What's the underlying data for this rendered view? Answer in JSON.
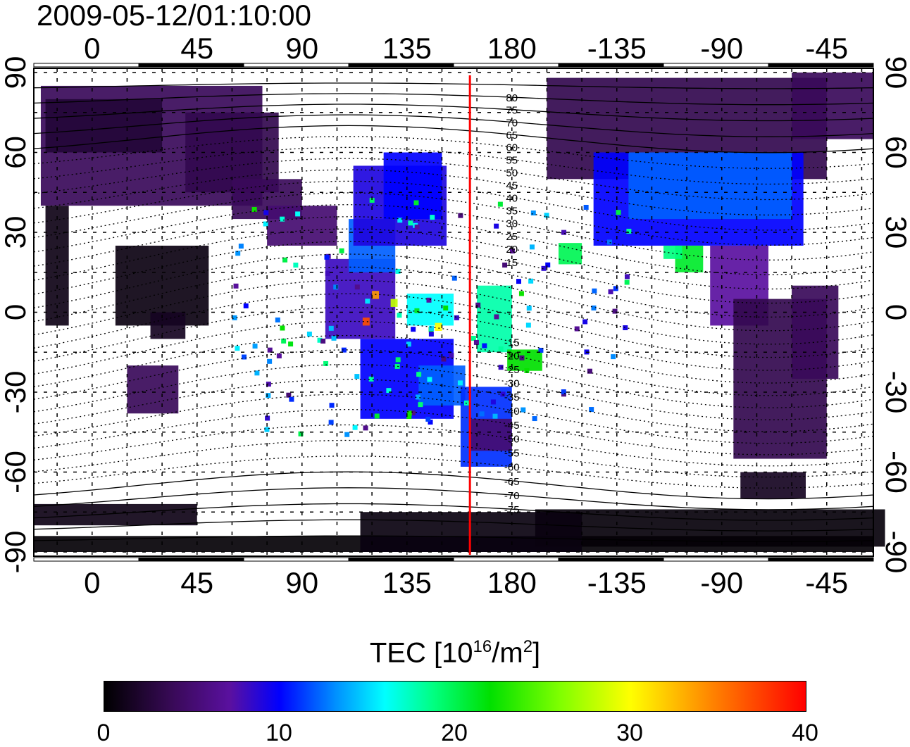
{
  "title": "2009-05-12/01:10:00",
  "axes": {
    "lon_ticks": [
      "0",
      "45",
      "90",
      "135",
      "180",
      "-135",
      "-90",
      "-45"
    ],
    "lon_tick_values": [
      0,
      45,
      90,
      135,
      180,
      225,
      270,
      315
    ],
    "lat_ticks": [
      "90",
      "60",
      "30",
      "0",
      "-30",
      "-60",
      "-90"
    ],
    "lat_tick_values": [
      90,
      60,
      30,
      0,
      -30,
      -60,
      -90
    ],
    "lon_range": [
      -25,
      335
    ],
    "lat_range": [
      -90,
      90
    ]
  },
  "marker_line": {
    "lon": 162,
    "color": "#ff0000"
  },
  "mlat_labels": [
    "80",
    "75",
    "70",
    "65",
    "60",
    "55",
    "50",
    "45",
    "40",
    "35",
    "30",
    "25",
    "20",
    "15",
    "-15",
    "-20",
    "-25",
    "-30",
    "-35",
    "-40",
    "-45",
    "-50",
    "-55",
    "-60",
    "-65",
    "-70",
    "-75"
  ],
  "mlat_values": [
    80,
    75,
    70,
    65,
    60,
    55,
    50,
    45,
    40,
    35,
    30,
    25,
    20,
    15,
    -15,
    -20,
    -25,
    -30,
    -35,
    -40,
    -45,
    -50,
    -55,
    -60,
    -65,
    -70,
    -75
  ],
  "colorbar": {
    "title_main": "TEC  [10",
    "title_sup1": "16",
    "title_mid": "/m",
    "title_sup2": "2",
    "title_end": "]",
    "ticks": [
      "0",
      "10",
      "20",
      "30",
      "40"
    ],
    "range": [
      0,
      40
    ]
  },
  "tec_patches": [
    [
      -22,
      40,
      95,
      45,
      4
    ],
    [
      -20,
      60,
      50,
      20,
      2.5
    ],
    [
      40,
      45,
      40,
      30,
      3.5
    ],
    [
      60,
      35,
      30,
      15,
      4
    ],
    [
      -20,
      -5,
      10,
      45,
      1
    ],
    [
      10,
      -5,
      40,
      30,
      0.8
    ],
    [
      15,
      -38,
      22,
      18,
      4
    ],
    [
      25,
      -10,
      15,
      10,
      1.5
    ],
    [
      75,
      25,
      30,
      15,
      5
    ],
    [
      100,
      -10,
      30,
      30,
      8
    ],
    [
      110,
      15,
      20,
      20,
      12
    ],
    [
      112,
      25,
      40,
      30,
      9
    ],
    [
      125,
      35,
      25,
      25,
      10
    ],
    [
      115,
      -40,
      40,
      30,
      10
    ],
    [
      140,
      -35,
      20,
      15,
      12
    ],
    [
      158,
      -58,
      22,
      30,
      11
    ],
    [
      162,
      -52,
      18,
      12,
      5
    ],
    [
      190,
      -88,
      150,
      14,
      0.5
    ],
    [
      -25,
      -90,
      360,
      6,
      0.3
    ],
    [
      115,
      -90,
      95,
      15,
      0.7
    ],
    [
      -25,
      -80,
      70,
      8,
      1
    ],
    [
      195,
      50,
      120,
      38,
      3.5
    ],
    [
      215,
      25,
      90,
      35,
      10
    ],
    [
      230,
      35,
      70,
      25,
      12
    ],
    [
      250,
      15,
      12,
      10,
      21
    ],
    [
      245,
      20,
      8,
      5,
      19
    ],
    [
      265,
      -5,
      25,
      30,
      7
    ],
    [
      275,
      -55,
      40,
      60,
      3.5
    ],
    [
      300,
      -25,
      20,
      35,
      4
    ],
    [
      278,
      -70,
      28,
      10,
      1.5
    ],
    [
      200,
      18,
      10,
      8,
      20
    ],
    [
      300,
      65,
      35,
      25,
      4
    ],
    [
      165,
      -15,
      15,
      25,
      18
    ],
    [
      178,
      -22,
      15,
      8,
      22
    ],
    [
      135,
      -5,
      20,
      12,
      16
    ],
    [
      120,
      5,
      3,
      3,
      34
    ],
    [
      147,
      -7,
      3,
      3,
      30
    ],
    [
      128,
      2,
      3,
      3,
      28
    ],
    [
      116,
      -5,
      3,
      3,
      37
    ]
  ]
}
